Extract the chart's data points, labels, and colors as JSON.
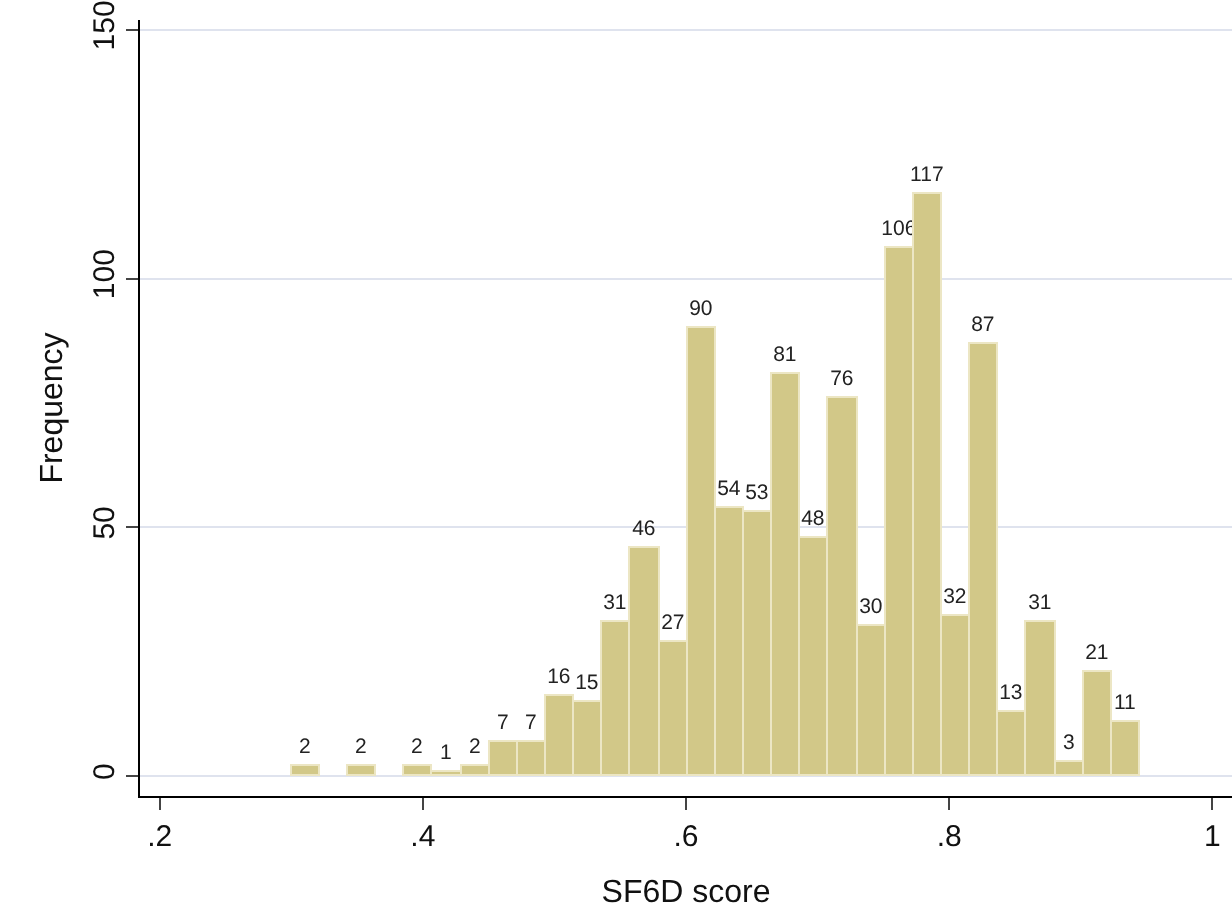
{
  "chart_data": {
    "type": "histogram",
    "xlabel": "SF6D score",
    "ylabel": "Frequency",
    "color": "#d2c888",
    "bins": [
      0.3,
      0.3215,
      0.343,
      0.3645,
      0.386,
      0.4075,
      0.429,
      0.4505,
      0.472,
      0.4935,
      0.515,
      0.5365,
      0.558,
      0.5795,
      0.601,
      0.6225,
      0.644,
      0.6655,
      0.687,
      0.7085,
      0.73,
      0.7515,
      0.773,
      0.7945,
      0.816,
      0.8375,
      0.859,
      0.8805,
      0.902,
      0.9235,
      0.945
    ],
    "values": [
      2,
      0,
      2,
      0,
      2,
      1,
      2,
      7,
      7,
      16,
      15,
      31,
      46,
      27,
      90,
      54,
      53,
      81,
      48,
      76,
      30,
      106,
      117,
      32,
      87,
      13,
      31,
      3,
      21,
      11
    ],
    "value_labels": [
      "2",
      null,
      "2",
      null,
      "2",
      "1",
      "2",
      "7",
      "7",
      "16",
      "15",
      "31",
      "46",
      "27",
      "90",
      "54",
      "53",
      "81",
      "48",
      "76",
      "30",
      "106",
      "117",
      "32",
      "87",
      "13",
      "31",
      "3",
      "21",
      "11"
    ],
    "xlim": [
      0.185,
      1.015
    ],
    "xticks": [
      {
        "value": 0.2,
        "label": ".2"
      },
      {
        "value": 0.4,
        "label": ".4"
      },
      {
        "value": 0.6,
        "label": ".6"
      },
      {
        "value": 0.8,
        "label": ".8"
      },
      1
    ],
    "ylim": [
      -4,
      152
    ],
    "yticks": [
      0,
      50,
      100,
      150
    ],
    "grid": "y",
    "legend": false
  }
}
